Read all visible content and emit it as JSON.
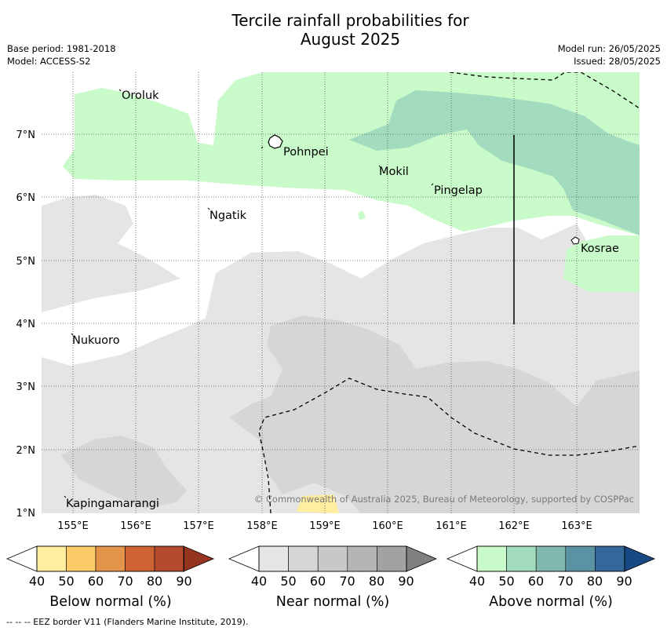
{
  "title_line1": "Tercile rainfall probabilities for",
  "title_line2": "August 2025",
  "meta": {
    "base_period": "Base period: 1981-2018",
    "model": "Model: ACCESS-S2",
    "model_run": "Model run: 26/05/2025",
    "issued": "Issued: 28/05/2025"
  },
  "map": {
    "lon_ticks": [
      "155°E",
      "156°E",
      "157°E",
      "158°E",
      "159°E",
      "160°E",
      "161°E",
      "162°E",
      "163°E"
    ],
    "lat_ticks": [
      "7°N",
      "6°N",
      "5°N",
      "4°N",
      "3°N",
      "2°N",
      "1°N"
    ],
    "places": [
      "Oroluk",
      "Pohnpei",
      "Mokil",
      "Pingelap",
      "Ngatik",
      "Kosrae",
      "Nukuoro",
      "Kapingamarangi"
    ],
    "copyright": "© Commonwealth of Australia 2025, Bureau of Meteorology, supported by COSPPac"
  },
  "colorbars": [
    {
      "label": "Below normal (%)",
      "ticks": [
        "40",
        "50",
        "60",
        "70",
        "80",
        "90"
      ],
      "colors": [
        "#ffeda0",
        "#fdcb6a",
        "#e39448",
        "#cd6333",
        "#b24a2b",
        "#96341f"
      ]
    },
    {
      "label": "Near normal (%)",
      "ticks": [
        "40",
        "50",
        "60",
        "70",
        "80",
        "90"
      ],
      "colors": [
        "#e5e5e5",
        "#d6d6d6",
        "#c8c8c8",
        "#b5b5b5",
        "#a2a2a2",
        "#808080"
      ]
    },
    {
      "label": "Above normal (%)",
      "ticks": [
        "40",
        "50",
        "60",
        "70",
        "80",
        "90"
      ],
      "colors": [
        "#c9fac9",
        "#a3dbbf",
        "#80b8b0",
        "#5a93a4",
        "#34679a",
        "#174a82"
      ]
    }
  ],
  "footnote": "--  --  -- EEZ border V11 (Flanders Marine Institute, 2019)."
}
